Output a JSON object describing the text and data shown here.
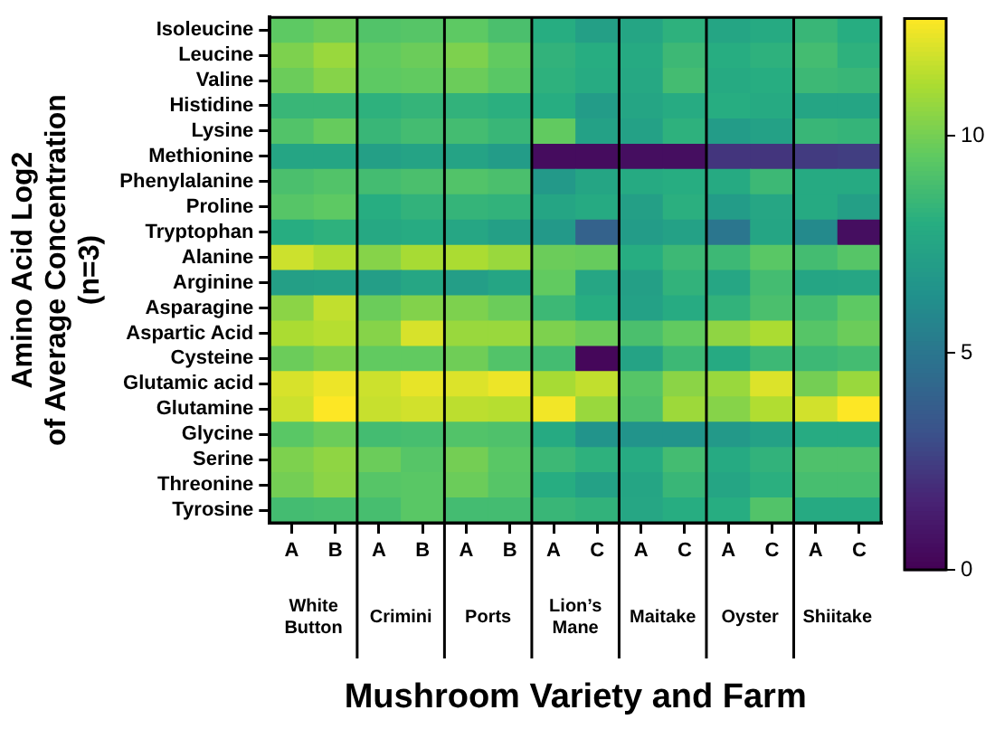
{
  "chart_data": {
    "type": "heatmap",
    "xlabel": "Mushroom Variety and Farm",
    "ylabel": "Amino Acid Log2\nof Average Concentration\n(n=3)",
    "categories": [
      "A",
      "B",
      "A",
      "B",
      "A",
      "B",
      "A",
      "C",
      "A",
      "C",
      "A",
      "C",
      "A",
      "C"
    ],
    "y_categories": [
      "Isoleucine",
      "Leucine",
      "Valine",
      "Histidine",
      "Lysine",
      "Methionine",
      "Phenylalanine",
      "Proline",
      "Tryptophan",
      "Alanine",
      "Arginine",
      "Asparagine",
      "Aspartic Acid",
      "Cysteine",
      "Glutamic acid",
      "Glutamine",
      "Glycine",
      "Serine",
      "Threonine",
      "Tyrosine"
    ],
    "cells": [
      [
        9.5,
        9.8,
        9.2,
        9.3,
        9.5,
        9.0,
        8.0,
        7.2,
        7.5,
        8.2,
        7.5,
        7.8,
        8.5,
        8.0
      ],
      [
        10.2,
        10.8,
        9.6,
        9.8,
        10.2,
        9.6,
        8.3,
        8.0,
        7.8,
        8.6,
        8.0,
        8.2,
        8.8,
        8.2
      ],
      [
        9.8,
        10.4,
        9.5,
        9.6,
        9.8,
        9.4,
        8.2,
        7.9,
        7.7,
        8.8,
        7.8,
        8.0,
        8.6,
        8.5
      ],
      [
        8.5,
        8.5,
        8.2,
        8.4,
        8.3,
        8.1,
        8.0,
        7.0,
        7.5,
        7.9,
        8.0,
        7.8,
        7.5,
        7.5
      ],
      [
        9.2,
        9.7,
        8.5,
        8.8,
        8.8,
        8.5,
        9.6,
        7.3,
        7.3,
        8.2,
        7.0,
        7.3,
        8.5,
        8.4
      ],
      [
        7.5,
        7.5,
        7.2,
        7.4,
        7.4,
        7.0,
        0.5,
        0.5,
        0.6,
        0.6,
        2.2,
        2.2,
        2.4,
        2.5
      ],
      [
        9.0,
        9.2,
        8.8,
        9.0,
        9.2,
        9.0,
        6.8,
        7.5,
        7.8,
        8.0,
        7.8,
        8.6,
        7.8,
        7.8
      ],
      [
        9.3,
        9.5,
        8.0,
        8.3,
        8.4,
        8.3,
        7.5,
        7.8,
        7.2,
        8.1,
        7.0,
        7.6,
        7.8,
        7.2
      ],
      [
        8.0,
        8.2,
        7.7,
        7.9,
        7.6,
        7.2,
        6.8,
        4.0,
        7.0,
        7.3,
        5.0,
        7.5,
        6.0,
        0.6
      ],
      [
        11.8,
        11.3,
        10.4,
        11.1,
        11.2,
        10.8,
        9.8,
        9.7,
        8.0,
        8.6,
        8.6,
        9.4,
        8.8,
        9.3
      ],
      [
        7.2,
        7.3,
        7.1,
        7.6,
        7.1,
        7.5,
        9.6,
        7.6,
        7.2,
        8.3,
        7.6,
        8.8,
        7.5,
        7.6
      ],
      [
        10.5,
        11.6,
        9.8,
        10.3,
        10.2,
        9.8,
        8.6,
        8.0,
        7.3,
        7.9,
        8.3,
        9.0,
        8.8,
        9.5
      ],
      [
        11.2,
        11.4,
        10.4,
        12.0,
        10.8,
        10.8,
        10.2,
        9.8,
        9.0,
        9.6,
        10.6,
        11.2,
        9.3,
        9.8
      ],
      [
        9.8,
        10.2,
        9.6,
        9.6,
        9.9,
        9.2,
        8.8,
        0.3,
        7.4,
        8.6,
        7.8,
        8.6,
        8.6,
        8.8
      ],
      [
        12.0,
        12.4,
        11.8,
        12.3,
        12.1,
        12.4,
        11.1,
        11.6,
        9.3,
        10.5,
        10.8,
        12.1,
        10.0,
        10.8
      ],
      [
        11.8,
        12.7,
        11.7,
        11.9,
        11.5,
        11.4,
        12.5,
        10.8,
        9.1,
        10.9,
        10.4,
        11.3,
        11.9,
        12.7
      ],
      [
        9.4,
        9.8,
        8.8,
        8.9,
        9.2,
        9.1,
        7.8,
        6.5,
        6.5,
        6.5,
        6.8,
        7.3,
        7.9,
        7.9
      ],
      [
        10.2,
        10.6,
        9.8,
        9.3,
        10.0,
        9.4,
        8.6,
        8.2,
        7.9,
        8.8,
        7.8,
        8.3,
        9.1,
        9.1
      ],
      [
        10.0,
        10.5,
        9.3,
        9.4,
        9.8,
        9.3,
        8.0,
        7.3,
        7.5,
        8.5,
        7.5,
        8.1,
        8.9,
        8.9
      ],
      [
        8.8,
        8.9,
        8.9,
        9.4,
        8.8,
        8.8,
        8.5,
        8.3,
        7.6,
        8.0,
        8.0,
        9.2,
        7.8,
        7.8
      ]
    ],
    "clim": [
      0,
      12.7
    ],
    "cticks": [
      0,
      5,
      10
    ],
    "annotations": [
      "White Button",
      "Crimini",
      "Ports",
      "Lion’s Mane",
      "Maitake",
      "Oyster",
      "Shiitake"
    ]
  }
}
